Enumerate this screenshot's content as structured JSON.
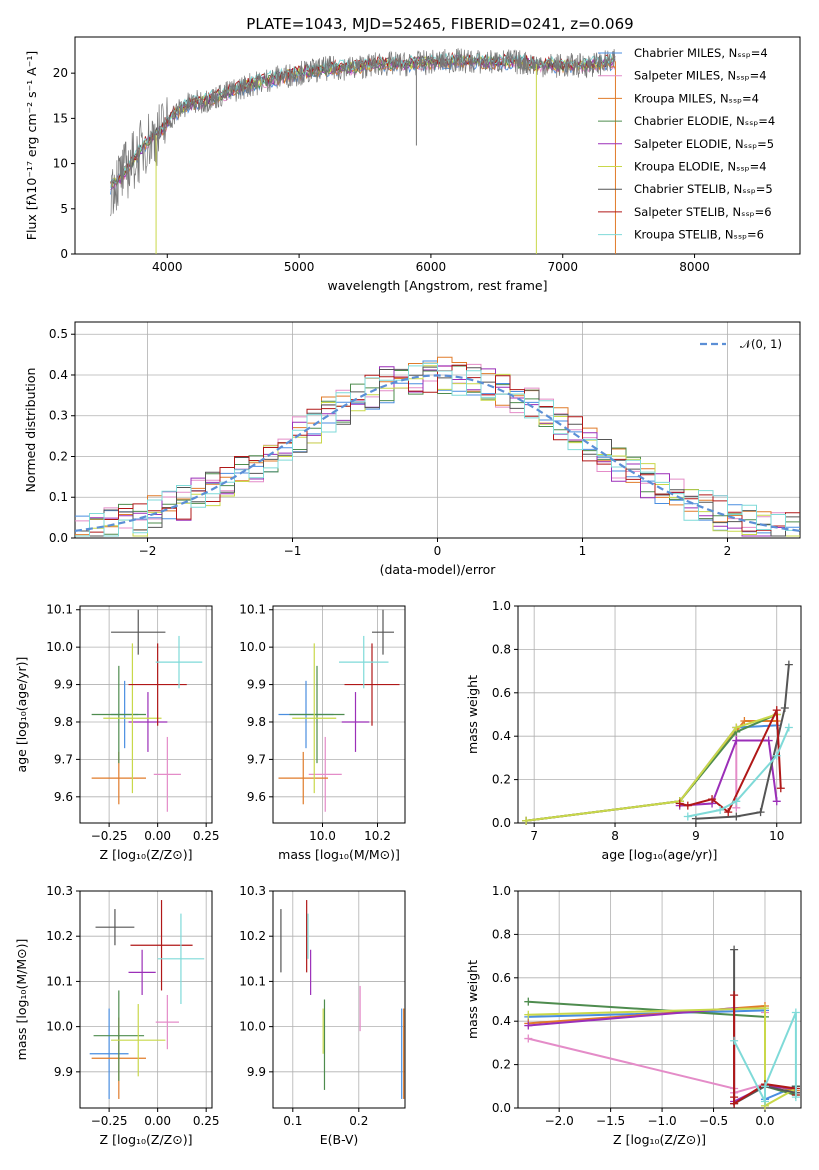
{
  "figure": {
    "title": "PLATE=1043, MJD=52465, FIBERID=0241, z=0.069"
  },
  "chart_data": [
    {
      "id": "spectrum",
      "type": "line",
      "xlabel": "wavelength [Angstrom, rest frame]",
      "ylabel": "Flux [fλ10⁻¹⁷ erg cm⁻² s⁻¹ A⁻¹]",
      "xlim": [
        3300,
        8800
      ],
      "ylim": [
        0,
        24
      ],
      "xticks": [
        4000,
        5000,
        6000,
        7000,
        8000
      ],
      "yticks": [
        0,
        5,
        10,
        15,
        20
      ],
      "legend": "right",
      "series": [
        {
          "name": "Chabrier MILES, N_SSP=4",
          "color": "#4a8ee0"
        },
        {
          "name": "Salpeter MILES, N_SSP=4",
          "color": "#e48cc8"
        },
        {
          "name": "Kroupa MILES, N_SSP=4",
          "color": "#e07b2a"
        },
        {
          "name": "Chabrier ELODIE, N_SSP=4",
          "color": "#4e8c4e"
        },
        {
          "name": "Salpeter ELODIE, N_SSP=5",
          "color": "#9b2fb8"
        },
        {
          "name": "Kroupa ELODIE, N_SSP=4",
          "color": "#c9d84a"
        },
        {
          "name": "Chabrier STELIB, N_SSP=5",
          "color": "#555555"
        },
        {
          "name": "Salpeter STELIB, N_SSP=6",
          "color": "#b01818"
        },
        {
          "name": "Kroupa STELIB, N_SSP=6",
          "color": "#7fdad8"
        }
      ],
      "continuum": {
        "x": [
          3570,
          3650,
          3750,
          3850,
          3950,
          4050,
          4150,
          4300,
          4450,
          4600,
          4800,
          5000,
          5200,
          5400,
          5600,
          5800,
          6000,
          6200,
          6400,
          6600,
          6800,
          7000,
          7200,
          7400
        ],
        "y": [
          7.5,
          8.5,
          10.5,
          12.5,
          13.5,
          15.5,
          16.5,
          17.0,
          17.8,
          18.6,
          19.4,
          20.0,
          20.5,
          20.6,
          21.0,
          21.0,
          21.2,
          21.4,
          21.2,
          21.3,
          21.0,
          20.8,
          20.9,
          21.3
        ]
      },
      "data_line_color": "#777777"
    },
    {
      "id": "residuals",
      "type": "line",
      "xlabel": "(data-model)/error",
      "ylabel": "Normed distribution",
      "xlim": [
        -2.5,
        2.5
      ],
      "ylim": [
        0,
        0.53
      ],
      "xticks": [
        -2,
        -1,
        0,
        1,
        2
      ],
      "yticks": [
        0.0,
        0.1,
        0.2,
        0.3,
        0.4,
        0.5
      ],
      "legend_label": "𝒩(0, 1)",
      "gaussian_color": "#5b8fd6"
    },
    {
      "id": "age_vs_Z",
      "type": "scatter",
      "xlabel": "Z [log₁₀(Z/Z⊙)]",
      "ylabel": "age  [log₁₀(age/yr)]",
      "xlim": [
        -0.4,
        0.28
      ],
      "ylim": [
        9.53,
        10.11
      ],
      "xticks": [
        -0.25,
        0.0,
        0.25
      ],
      "yticks": [
        9.6,
        9.7,
        9.8,
        9.9,
        10.0,
        10.1
      ],
      "points": [
        {
          "x": -0.17,
          "xerr": 0.07,
          "y": 9.82,
          "yerr": 0.09,
          "color": "#4a8ee0"
        },
        {
          "x": 0.05,
          "xerr": 0.07,
          "y": 9.66,
          "yerr": 0.1,
          "color": "#e48cc8"
        },
        {
          "x": -0.2,
          "xerr": 0.14,
          "y": 9.65,
          "yerr": 0.07,
          "color": "#e07b2a"
        },
        {
          "x": -0.2,
          "xerr": 0.14,
          "y": 9.82,
          "yerr": 0.13,
          "color": "#4e8c4e"
        },
        {
          "x": -0.05,
          "xerr": 0.1,
          "y": 9.8,
          "yerr": 0.08,
          "color": "#9b2fb8"
        },
        {
          "x": -0.13,
          "xerr": 0.15,
          "y": 9.81,
          "yerr": 0.2,
          "color": "#c9d84a"
        },
        {
          "x": -0.1,
          "xerr": 0.14,
          "y": 10.04,
          "yerr": 0.06,
          "color": "#555555"
        },
        {
          "x": 0.0,
          "xerr": 0.15,
          "y": 9.9,
          "yerr": 0.11,
          "color": "#b01818"
        },
        {
          "x": 0.11,
          "xerr": 0.12,
          "y": 9.96,
          "yerr": 0.07,
          "color": "#7fdad8"
        }
      ]
    },
    {
      "id": "age_vs_mass",
      "type": "scatter",
      "xlabel": "mass [log₁₀(M/M⊙)]",
      "ylabel": "",
      "xlim": [
        9.82,
        10.3
      ],
      "ylim": [
        9.53,
        10.11
      ],
      "xticks": [
        10.0,
        10.2
      ],
      "yticks": [
        9.6,
        9.7,
        9.8,
        9.9,
        10.0,
        10.1
      ],
      "points": [
        {
          "x": 9.94,
          "xerr": 0.1,
          "y": 9.82,
          "yerr": 0.09,
          "color": "#4a8ee0"
        },
        {
          "x": 10.01,
          "xerr": 0.06,
          "y": 9.66,
          "yerr": 0.1,
          "color": "#e48cc8"
        },
        {
          "x": 9.93,
          "xerr": 0.09,
          "y": 9.65,
          "yerr": 0.07,
          "color": "#e07b2a"
        },
        {
          "x": 9.98,
          "xerr": 0.1,
          "y": 9.82,
          "yerr": 0.13,
          "color": "#4e8c4e"
        },
        {
          "x": 10.12,
          "xerr": 0.05,
          "y": 9.8,
          "yerr": 0.08,
          "color": "#9b2fb8"
        },
        {
          "x": 9.97,
          "xerr": 0.08,
          "y": 9.81,
          "yerr": 0.2,
          "color": "#c9d84a"
        },
        {
          "x": 10.22,
          "xerr": 0.04,
          "y": 10.04,
          "yerr": 0.06,
          "color": "#555555"
        },
        {
          "x": 10.18,
          "xerr": 0.1,
          "y": 9.9,
          "yerr": 0.11,
          "color": "#b01818"
        },
        {
          "x": 10.15,
          "xerr": 0.09,
          "y": 9.96,
          "yerr": 0.07,
          "color": "#7fdad8"
        }
      ]
    },
    {
      "id": "mass_weight_vs_age",
      "type": "line",
      "xlabel": "age  [log₁₀(age/yr)]",
      "ylabel": "mass weight",
      "xlim": [
        6.8,
        10.3
      ],
      "ylim": [
        0,
        1.0
      ],
      "xticks": [
        7,
        8,
        9,
        10
      ],
      "yticks": [
        0.0,
        0.2,
        0.4,
        0.6,
        0.8,
        1.0
      ],
      "series": [
        {
          "color": "#4a8ee0",
          "x": [
            6.9,
            8.8,
            9.5,
            10.0
          ],
          "y": [
            0.01,
            0.1,
            0.44,
            0.45
          ]
        },
        {
          "color": "#e48cc8",
          "x": [
            6.9,
            8.8,
            9.5,
            9.5
          ],
          "y": [
            0.01,
            0.1,
            0.44,
            0.07
          ]
        },
        {
          "color": "#e07b2a",
          "x": [
            6.9,
            8.8,
            9.6,
            10.0
          ],
          "y": [
            0.01,
            0.1,
            0.47,
            0.47
          ]
        },
        {
          "color": "#4e8c4e",
          "x": [
            6.9,
            8.8,
            9.5,
            10.0
          ],
          "y": [
            0.01,
            0.1,
            0.42,
            0.5
          ]
        },
        {
          "color": "#9b2fb8",
          "x": [
            8.8,
            9.2,
            9.5,
            9.9,
            10.0
          ],
          "y": [
            0.08,
            0.09,
            0.38,
            0.38,
            0.1
          ]
        },
        {
          "color": "#c9d84a",
          "x": [
            6.9,
            8.8,
            9.5,
            10.0
          ],
          "y": [
            0.01,
            0.1,
            0.44,
            0.5
          ]
        },
        {
          "color": "#555555",
          "x": [
            9.0,
            9.5,
            9.8,
            10.1,
            10.15
          ],
          "y": [
            0.02,
            0.03,
            0.05,
            0.53,
            0.73
          ]
        },
        {
          "color": "#b01818",
          "x": [
            8.8,
            8.9,
            9.2,
            9.4,
            10.0,
            10.05
          ],
          "y": [
            0.09,
            0.08,
            0.11,
            0.05,
            0.52,
            0.16
          ]
        },
        {
          "color": "#7fdad8",
          "x": [
            8.9,
            9.3,
            9.5,
            10.0,
            10.15
          ],
          "y": [
            0.03,
            0.06,
            0.1,
            0.31,
            0.44
          ]
        }
      ]
    },
    {
      "id": "mass_vs_Z",
      "type": "scatter",
      "xlabel": "Z [log₁₀(Z/Z⊙)]",
      "ylabel": "mass [log₁₀(M/M⊙)]",
      "xlim": [
        -0.4,
        0.28
      ],
      "ylim": [
        9.82,
        10.3
      ],
      "xticks": [
        -0.25,
        0.0,
        0.25
      ],
      "yticks": [
        9.9,
        10.0,
        10.1,
        10.2,
        10.3
      ],
      "points": [
        {
          "x": -0.25,
          "xerr": 0.1,
          "y": 9.94,
          "yerr": 0.1,
          "color": "#4a8ee0"
        },
        {
          "x": 0.05,
          "xerr": 0.06,
          "y": 10.01,
          "yerr": 0.06,
          "color": "#e48cc8"
        },
        {
          "x": -0.2,
          "xerr": 0.14,
          "y": 9.93,
          "yerr": 0.09,
          "color": "#e07b2a"
        },
        {
          "x": -0.2,
          "xerr": 0.13,
          "y": 9.98,
          "yerr": 0.1,
          "color": "#4e8c4e"
        },
        {
          "x": -0.08,
          "xerr": 0.07,
          "y": 10.12,
          "yerr": 0.05,
          "color": "#9b2fb8"
        },
        {
          "x": -0.1,
          "xerr": 0.14,
          "y": 9.97,
          "yerr": 0.08,
          "color": "#c9d84a"
        },
        {
          "x": -0.22,
          "xerr": 0.1,
          "y": 10.22,
          "yerr": 0.04,
          "color": "#555555"
        },
        {
          "x": 0.02,
          "xerr": 0.16,
          "y": 10.18,
          "yerr": 0.1,
          "color": "#b01818"
        },
        {
          "x": 0.12,
          "xerr": 0.12,
          "y": 10.15,
          "yerr": 0.1,
          "color": "#7fdad8"
        }
      ]
    },
    {
      "id": "mass_vs_ebv",
      "type": "scatter",
      "xlabel": "E(B-V)",
      "ylabel": "",
      "xlim": [
        0.07,
        0.27
      ],
      "ylim": [
        9.82,
        10.3
      ],
      "xticks": [
        0.1,
        0.2
      ],
      "yticks": [
        9.9,
        10.0,
        10.1,
        10.2,
        10.3
      ],
      "points": [
        {
          "x": 0.265,
          "y": 9.94,
          "yerr": 0.1,
          "color": "#4a8ee0"
        },
        {
          "x": 0.202,
          "y": 10.04,
          "yerr": 0.05,
          "color": "#e48cc8"
        },
        {
          "x": 0.268,
          "y": 9.94,
          "yerr": 0.1,
          "color": "#e07b2a"
        },
        {
          "x": 0.148,
          "y": 9.96,
          "yerr": 0.1,
          "color": "#4e8c4e"
        },
        {
          "x": 0.127,
          "y": 10.12,
          "yerr": 0.05,
          "color": "#9b2fb8"
        },
        {
          "x": 0.146,
          "y": 9.99,
          "yerr": 0.05,
          "color": "#c9d84a"
        },
        {
          "x": 0.082,
          "y": 10.19,
          "yerr": 0.07,
          "color": "#555555"
        },
        {
          "x": 0.121,
          "y": 10.2,
          "yerr": 0.08,
          "color": "#b01818"
        },
        {
          "x": 0.123,
          "y": 10.2,
          "yerr": 0.05,
          "color": "#7fdad8"
        }
      ]
    },
    {
      "id": "mass_weight_vs_Z",
      "type": "line",
      "xlabel": "Z [log₁₀(Z/Z⊙)]",
      "ylabel": "mass weight",
      "xlim": [
        -2.4,
        0.35
      ],
      "ylim": [
        0,
        1.0
      ],
      "xticks": [
        -2.0,
        -1.5,
        -1.0,
        -0.5,
        0.0
      ],
      "yticks": [
        0.0,
        0.2,
        0.4,
        0.6,
        0.8,
        1.0
      ],
      "series": [
        {
          "color": "#4a8ee0",
          "x": [
            -2.3,
            0.0,
            0.0,
            0.3
          ],
          "y": [
            0.42,
            0.45,
            0.04,
            0.1
          ]
        },
        {
          "color": "#e48cc8",
          "x": [
            -2.3,
            -0.3,
            -0.3,
            0.0,
            0.0
          ],
          "y": [
            0.32,
            0.09,
            0.07,
            0.11,
            0.44
          ]
        },
        {
          "color": "#e07b2a",
          "x": [
            -2.3,
            0.0,
            0.0,
            0.3,
            0.3
          ],
          "y": [
            0.39,
            0.47,
            0.11,
            0.08,
            0.07
          ]
        },
        {
          "color": "#4e8c4e",
          "x": [
            -2.3,
            0.0,
            0.0,
            0.3,
            0.3
          ],
          "y": [
            0.49,
            0.42,
            0.1,
            0.06,
            0.1
          ]
        },
        {
          "color": "#9b2fb8",
          "x": [
            -2.3,
            -0.3,
            -0.3,
            0.0,
            0.3,
            0.3
          ],
          "y": [
            0.38,
            0.46,
            0.03,
            0.1,
            0.09,
            0.07
          ]
        },
        {
          "color": "#c9d84a",
          "x": [
            -2.3,
            0.0,
            0.0,
            0.3
          ],
          "y": [
            0.43,
            0.46,
            0.01,
            0.09
          ]
        },
        {
          "color": "#555555",
          "x": [
            -0.3,
            -0.3,
            0.0,
            0.3,
            0.3
          ],
          "y": [
            0.73,
            0.02,
            0.1,
            0.07,
            0.1
          ]
        },
        {
          "color": "#b01818",
          "x": [
            -0.3,
            -0.3,
            -0.3,
            0.0,
            0.3,
            0.3
          ],
          "y": [
            0.52,
            0.05,
            0.02,
            0.11,
            0.09,
            0.06
          ]
        },
        {
          "color": "#7fdad8",
          "x": [
            -0.3,
            0.0,
            0.0,
            0.3,
            0.3
          ],
          "y": [
            0.31,
            0.03,
            0.1,
            0.44,
            0.05
          ]
        }
      ]
    }
  ]
}
